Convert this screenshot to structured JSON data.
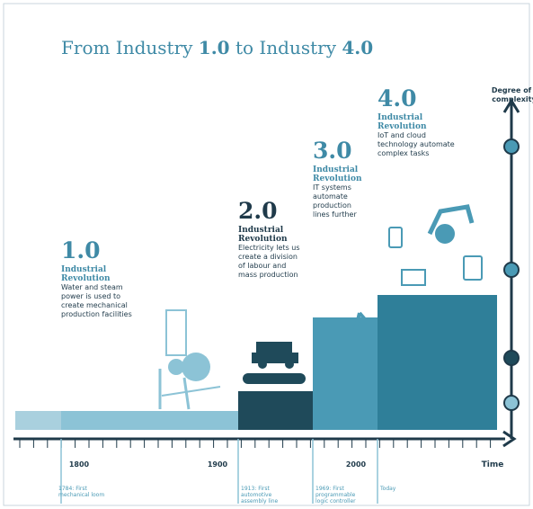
{
  "header": {
    "title": [
      "From Industry ",
      "1.0",
      " to Industry ",
      "4.0"
    ]
  },
  "stages": [
    {
      "number": "1.0",
      "heading": [
        "Industrial",
        "Revolution"
      ],
      "description": [
        "Water and steam",
        "power is used to",
        "create mechanical",
        "production facilities"
      ],
      "note": [
        "1784: First",
        "mechanical loom"
      ]
    },
    {
      "number": "2.0",
      "heading": [
        "Industrial",
        "Revolution"
      ],
      "description": [
        "Electricity lets us",
        "create a division",
        "of labour and",
        "mass production"
      ],
      "note": [
        "1913: First",
        "automotive",
        "assembly line"
      ]
    },
    {
      "number": "3.0",
      "heading": [
        "Industrial",
        "Revolution"
      ],
      "description": [
        "IT systems",
        "automate",
        "production",
        "lines further"
      ],
      "note": [
        "1969: First",
        "programmable",
        "logic controller"
      ]
    },
    {
      "number": "4.0",
      "heading": [
        "Industrial",
        "Revolution"
      ],
      "description": [
        "IoT and cloud",
        "technology automate",
        "complex tasks"
      ],
      "note": [
        "Today"
      ]
    }
  ],
  "axis": {
    "y_label": [
      "Degree of",
      "complexity"
    ],
    "x_label": "Time",
    "years": [
      "1800",
      "1900",
      "2000"
    ]
  }
}
